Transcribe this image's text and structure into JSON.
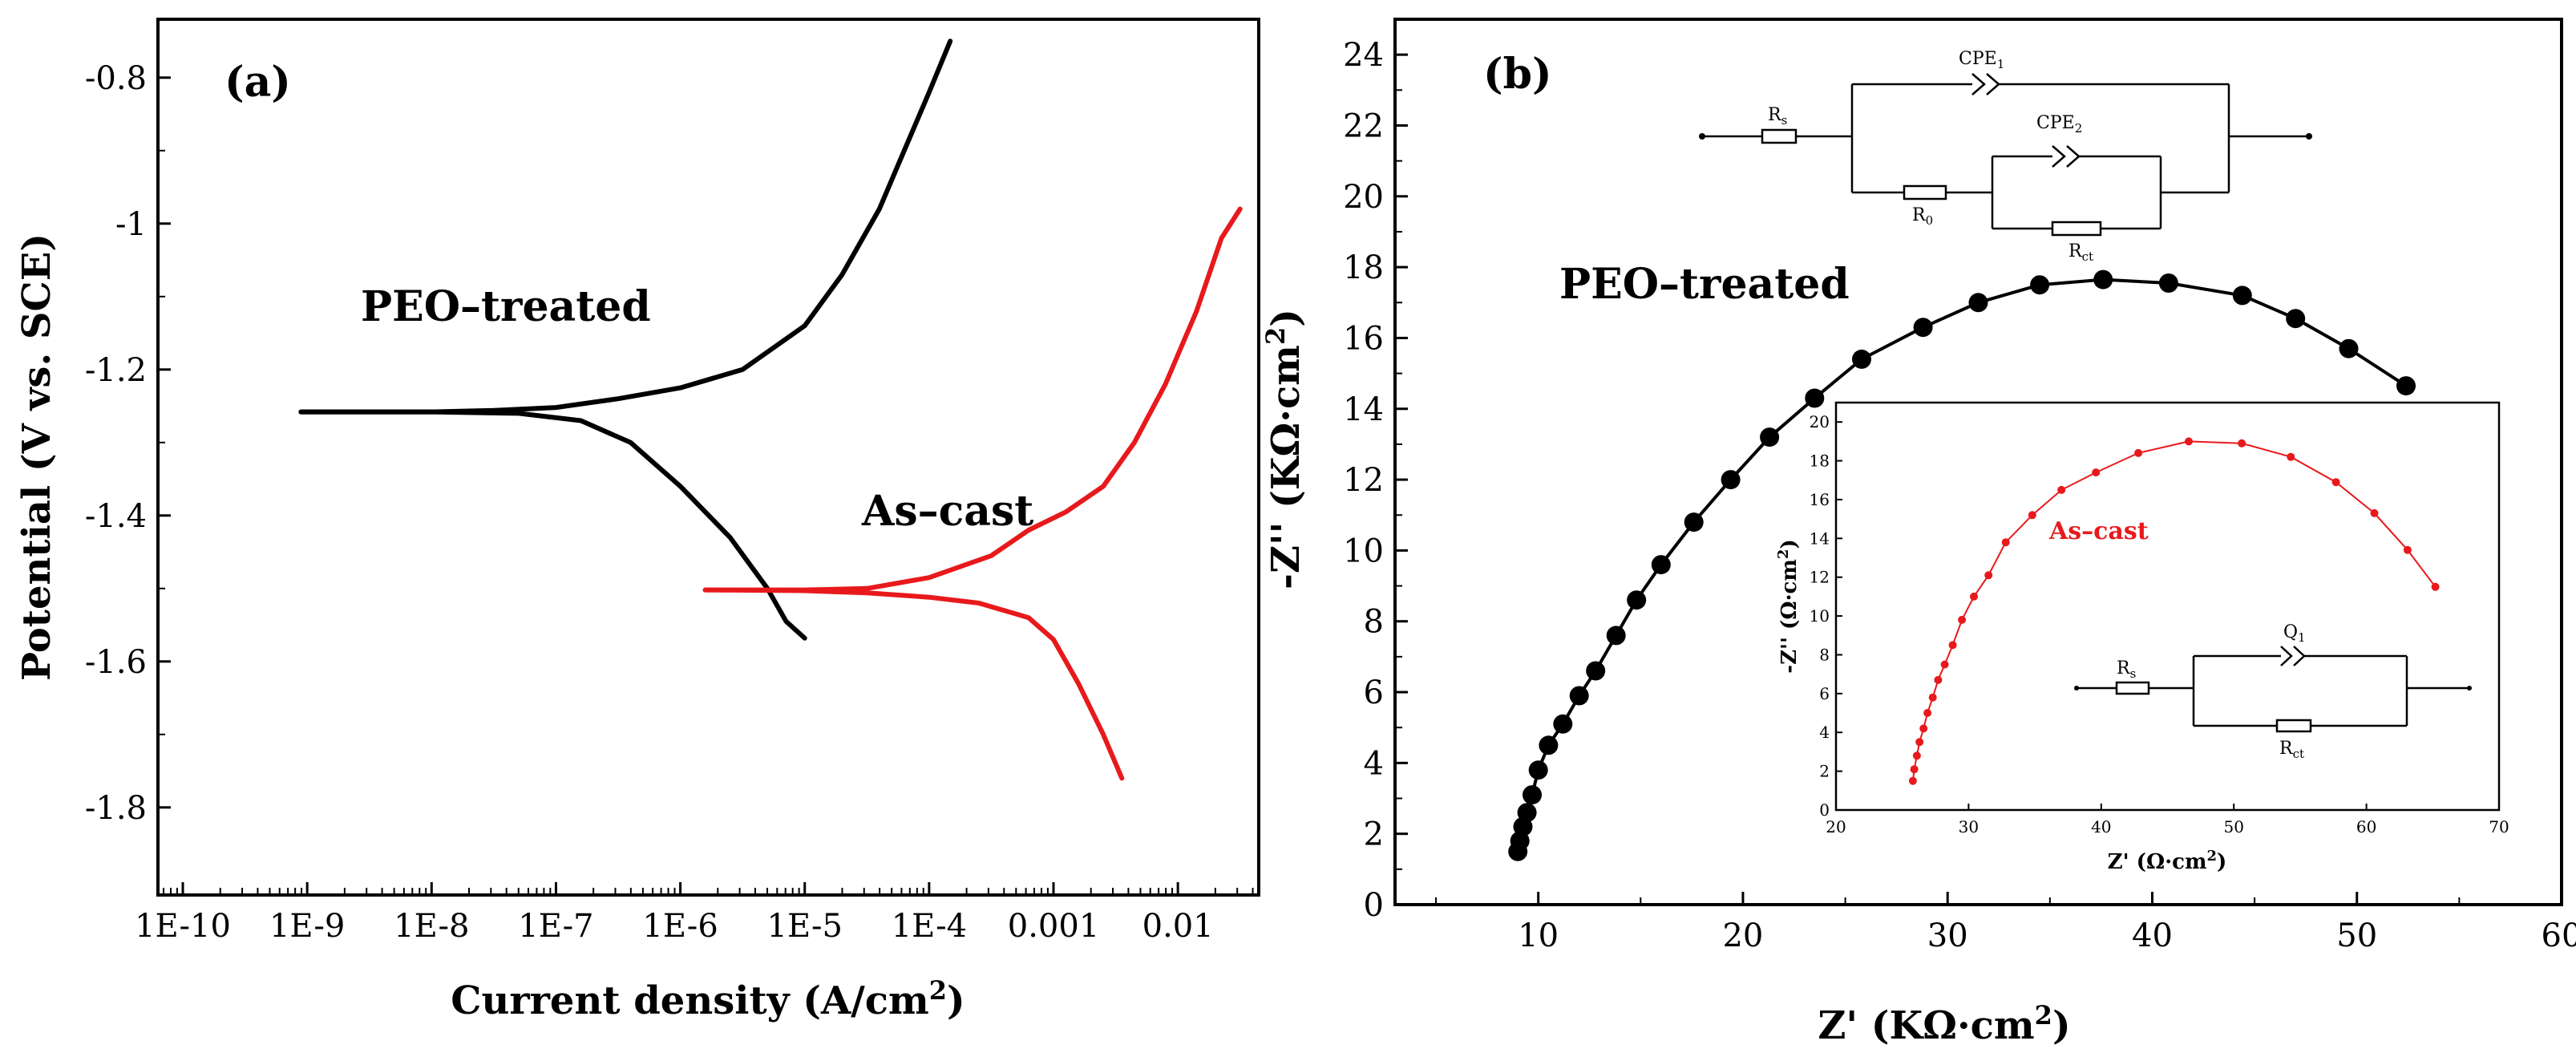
{
  "chart_data": [
    {
      "type": "line",
      "panel_label": "(a)",
      "xlabel": "Current density (A/cm",
      "xlabel_sup": "2",
      "xlabel_end": ")",
      "ylabel": "Potential (V vs. SCE)",
      "xscale": "log",
      "xlim": [
        -10.2,
        -1.35
      ],
      "ylim": [
        -1.92,
        -0.72
      ],
      "xticks": [
        {
          "v": -10,
          "label": "1E-10"
        },
        {
          "v": -9,
          "label": "1E-9"
        },
        {
          "v": -8,
          "label": "1E-8"
        },
        {
          "v": -7,
          "label": "1E-7"
        },
        {
          "v": -6,
          "label": "1E-6"
        },
        {
          "v": -5,
          "label": "1E-5"
        },
        {
          "v": -4,
          "label": "1E-4"
        },
        {
          "v": -3,
          "label": "0.001"
        },
        {
          "v": -2,
          "label": "0.01"
        }
      ],
      "yticks": [
        {
          "v": -0.8,
          "label": "-0.8"
        },
        {
          "v": -1.0,
          "label": "-1"
        },
        {
          "v": -1.2,
          "label": "-1.2"
        },
        {
          "v": -1.4,
          "label": "-1.4"
        },
        {
          "v": -1.6,
          "label": "-1.6"
        },
        {
          "v": -1.8,
          "label": "-1.8"
        }
      ],
      "annotations": [
        {
          "text": "PEO–treated"
        },
        {
          "text": "As–cast"
        }
      ],
      "series": [
        {
          "name": "PEO-treated anodic",
          "color": "#000000",
          "points": [
            [
              -9.05,
              -1.258
            ],
            [
              -8.0,
              -1.258
            ],
            [
              -7.5,
              -1.256
            ],
            [
              -7.0,
              -1.252
            ],
            [
              -6.5,
              -1.24
            ],
            [
              -6.0,
              -1.225
            ],
            [
              -5.5,
              -1.2
            ],
            [
              -5.0,
              -1.14
            ],
            [
              -4.7,
              -1.07
            ],
            [
              -4.4,
              -0.98
            ],
            [
              -4.2,
              -0.9
            ],
            [
              -4.0,
              -0.82
            ],
            [
              -3.83,
              -0.75
            ]
          ]
        },
        {
          "name": "PEO-treated cathodic",
          "color": "#000000",
          "points": [
            [
              -9.05,
              -1.258
            ],
            [
              -8.0,
              -1.258
            ],
            [
              -7.3,
              -1.26
            ],
            [
              -6.8,
              -1.27
            ],
            [
              -6.4,
              -1.3
            ],
            [
              -6.0,
              -1.36
            ],
            [
              -5.6,
              -1.43
            ],
            [
              -5.3,
              -1.5
            ],
            [
              -5.15,
              -1.545
            ],
            [
              -5.0,
              -1.568
            ]
          ]
        },
        {
          "name": "As-cast anodic",
          "color": "#e8191c",
          "points": [
            [
              -5.8,
              -1.502
            ],
            [
              -5.0,
              -1.502
            ],
            [
              -4.5,
              -1.5
            ],
            [
              -4.0,
              -1.485
            ],
            [
              -3.5,
              -1.455
            ],
            [
              -3.2,
              -1.42
            ],
            [
              -2.9,
              -1.395
            ],
            [
              -2.6,
              -1.36
            ],
            [
              -2.35,
              -1.3
            ],
            [
              -2.1,
              -1.22
            ],
            [
              -1.85,
              -1.12
            ],
            [
              -1.65,
              -1.02
            ],
            [
              -1.5,
              -0.98
            ]
          ]
        },
        {
          "name": "As-cast cathodic",
          "color": "#e8191c",
          "points": [
            [
              -5.8,
              -1.502
            ],
            [
              -5.0,
              -1.503
            ],
            [
              -4.5,
              -1.506
            ],
            [
              -4.0,
              -1.512
            ],
            [
              -3.6,
              -1.52
            ],
            [
              -3.2,
              -1.54
            ],
            [
              -3.0,
              -1.57
            ],
            [
              -2.8,
              -1.63
            ],
            [
              -2.6,
              -1.7
            ],
            [
              -2.45,
              -1.76
            ]
          ]
        }
      ]
    },
    {
      "type": "scatter",
      "panel_label": "(b)",
      "xlabel": "Z'  (KΩ·cm",
      "xlabel_sup": "2",
      "xlabel_end": ")",
      "ylabel": "-Z''  (KΩ·cm",
      "ylabel_sup": "2",
      "ylabel_end": ")",
      "xlim": [
        3.0,
        60.0
      ],
      "ylim": [
        0,
        25.0
      ],
      "xticks": [
        {
          "v": 10,
          "label": "10"
        },
        {
          "v": 20,
          "label": "20"
        },
        {
          "v": 30,
          "label": "30"
        },
        {
          "v": 40,
          "label": "40"
        },
        {
          "v": 50,
          "label": "50"
        },
        {
          "v": 60,
          "label": "60"
        }
      ],
      "yticks": [
        {
          "v": 0,
          "label": "0"
        },
        {
          "v": 2,
          "label": "2"
        },
        {
          "v": 4,
          "label": "4"
        },
        {
          "v": 6,
          "label": "6"
        },
        {
          "v": 8,
          "label": "8"
        },
        {
          "v": 10,
          "label": "10"
        },
        {
          "v": 12,
          "label": "12"
        },
        {
          "v": 14,
          "label": "14"
        },
        {
          "v": 16,
          "label": "16"
        },
        {
          "v": 18,
          "label": "18"
        },
        {
          "v": 20,
          "label": "20"
        },
        {
          "v": 22,
          "label": "22"
        },
        {
          "v": 24,
          "label": "24"
        }
      ],
      "annotations": [
        {
          "text": "PEO–treated"
        }
      ],
      "circuit_labels": {
        "rs": "R",
        "rs_sub": "s",
        "r0": "R",
        "r0_sub": "0",
        "rct": "R",
        "rct_sub": "ct",
        "cpe1": "CPE",
        "cpe1_sub": "1",
        "cpe2": "CPE",
        "cpe2_sub": "2"
      },
      "series": [
        {
          "name": "PEO-treated",
          "color": "#000000",
          "points": [
            [
              9.0,
              1.5
            ],
            [
              9.1,
              1.8
            ],
            [
              9.25,
              2.2
            ],
            [
              9.45,
              2.6
            ],
            [
              9.7,
              3.1
            ],
            [
              10.0,
              3.8
            ],
            [
              10.5,
              4.5
            ],
            [
              11.2,
              5.1
            ],
            [
              12.0,
              5.9
            ],
            [
              12.8,
              6.6
            ],
            [
              13.8,
              7.6
            ],
            [
              14.8,
              8.6
            ],
            [
              16.0,
              9.6
            ],
            [
              17.6,
              10.8
            ],
            [
              19.4,
              12.0
            ],
            [
              21.3,
              13.2
            ],
            [
              23.5,
              14.3
            ],
            [
              25.8,
              15.4
            ],
            [
              28.8,
              16.3
            ],
            [
              31.5,
              17.0
            ],
            [
              34.5,
              17.5
            ],
            [
              37.6,
              17.65
            ],
            [
              40.8,
              17.55
            ],
            [
              44.4,
              17.2
            ],
            [
              47.0,
              16.55
            ],
            [
              49.6,
              15.7
            ],
            [
              52.4,
              14.65
            ]
          ]
        }
      ]
    },
    {
      "type": "scatter",
      "panel_label": "inset",
      "xlabel": "Z'  (Ω·cm",
      "xlabel_sup": "2",
      "xlabel_end": ")",
      "ylabel": "-Z''  (Ω·cm",
      "ylabel_sup": "2",
      "ylabel_end": ")",
      "xlim": [
        20,
        70
      ],
      "ylim": [
        0,
        21
      ],
      "xticks": [
        {
          "v": 20,
          "label": "20"
        },
        {
          "v": 30,
          "label": "30"
        },
        {
          "v": 40,
          "label": "40"
        },
        {
          "v": 50,
          "label": "50"
        },
        {
          "v": 60,
          "label": "60"
        },
        {
          "v": 70,
          "label": "70"
        }
      ],
      "yticks": [
        {
          "v": 0,
          "label": "0"
        },
        {
          "v": 2,
          "label": "2"
        },
        {
          "v": 4,
          "label": "4"
        },
        {
          "v": 6,
          "label": "6"
        },
        {
          "v": 8,
          "label": "8"
        },
        {
          "v": 10,
          "label": "10"
        },
        {
          "v": 12,
          "label": "12"
        },
        {
          "v": 14,
          "label": "14"
        },
        {
          "v": 16,
          "label": "16"
        },
        {
          "v": 18,
          "label": "18"
        },
        {
          "v": 20,
          "label": "20"
        }
      ],
      "annotations": [
        {
          "text": "As–cast"
        }
      ],
      "circuit_labels": {
        "rs": "R",
        "rs_sub": "s",
        "q": "Q",
        "q_sub": "1",
        "rct": "R",
        "rct_sub": "ct"
      },
      "series": [
        {
          "name": "As-cast",
          "color": "#e8191c",
          "points": [
            [
              25.8,
              1.5
            ],
            [
              25.9,
              2.1
            ],
            [
              26.1,
              2.8
            ],
            [
              26.3,
              3.5
            ],
            [
              26.6,
              4.2
            ],
            [
              26.9,
              5.0
            ],
            [
              27.3,
              5.8
            ],
            [
              27.7,
              6.7
            ],
            [
              28.2,
              7.5
            ],
            [
              28.8,
              8.5
            ],
            [
              29.5,
              9.8
            ],
            [
              30.4,
              11.0
            ],
            [
              31.5,
              12.1
            ],
            [
              32.8,
              13.8
            ],
            [
              34.8,
              15.2
            ],
            [
              37.0,
              16.5
            ],
            [
              39.6,
              17.4
            ],
            [
              42.8,
              18.4
            ],
            [
              46.6,
              19.0
            ],
            [
              50.6,
              18.9
            ],
            [
              54.3,
              18.2
            ],
            [
              57.7,
              16.9
            ],
            [
              60.6,
              15.3
            ],
            [
              63.1,
              13.4
            ],
            [
              65.2,
              11.5
            ]
          ]
        }
      ]
    }
  ]
}
